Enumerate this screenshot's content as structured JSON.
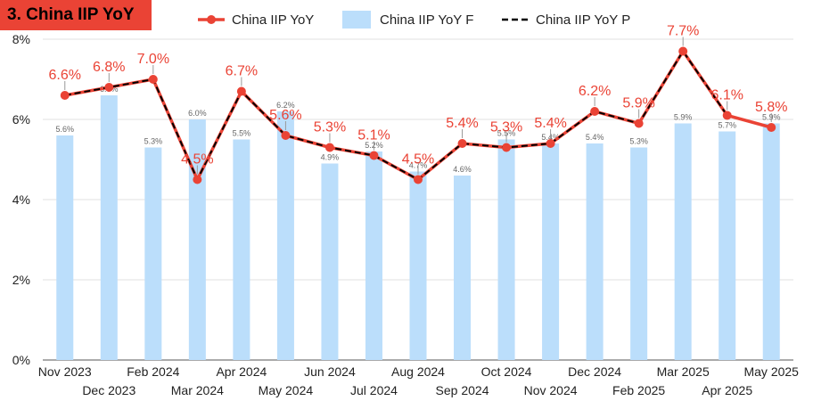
{
  "title": "3. China IIP YoY",
  "chart_data": {
    "type": "bar",
    "title": "3. China IIP YoY",
    "categories": [
      "Nov 2023",
      "Dec 2023",
      "Feb 2024",
      "Mar 2024",
      "Apr 2024",
      "May 2024",
      "Jun 2024",
      "Jul 2024",
      "Aug 2024",
      "Sep 2024",
      "Oct 2024",
      "Nov 2024",
      "Dec 2024",
      "Feb 2025",
      "Mar 2025",
      "Apr 2025",
      "May 2025"
    ],
    "ylim": [
      0,
      8
    ],
    "yticks": [
      "0%",
      "2%",
      "4%",
      "6%",
      "8%"
    ],
    "legend_position": "top",
    "series": [
      {
        "name": "China IIP YoY",
        "kind": "line",
        "color": "#ea4335",
        "values": [
          6.6,
          6.8,
          7.0,
          4.5,
          6.7,
          5.6,
          5.3,
          5.1,
          4.5,
          5.4,
          5.3,
          5.4,
          6.2,
          5.9,
          7.7,
          6.1,
          5.8
        ],
        "labels": [
          "6.6%",
          "6.8%",
          "7.0%",
          "4.5%",
          "6.7%",
          "5.6%",
          "5.3%",
          "5.1%",
          "4.5%",
          "5.4%",
          "5.3%",
          "5.4%",
          "6.2%",
          "5.9%",
          "7.7%",
          "6.1%",
          "5.8%"
        ]
      },
      {
        "name": "China IIP YoY F",
        "kind": "bar",
        "color": "#bbdefb",
        "values": [
          5.6,
          6.6,
          5.3,
          6.0,
          5.5,
          6.2,
          4.9,
          5.2,
          4.7,
          4.6,
          5.5,
          5.4,
          5.4,
          5.3,
          5.9,
          5.7,
          5.9
        ],
        "labels": [
          "5.6%",
          "6.6%",
          "5.3%",
          "6.0%",
          "5.5%",
          "6.2%",
          "4.9%",
          "5.2%",
          "4.7%",
          "4.6%",
          "5.5%",
          "5.4%",
          "5.4%",
          "5.3%",
          "5.9%",
          "5.7%",
          "5.9%"
        ]
      },
      {
        "name": "China IIP YoY P",
        "kind": "dashed-line",
        "color": "#000000",
        "values": [
          6.6,
          6.8,
          7.0,
          4.5,
          6.7,
          5.6,
          5.3,
          5.1,
          4.5,
          5.4,
          5.3,
          5.4,
          6.2,
          5.9,
          7.7,
          6.1,
          null
        ]
      }
    ]
  }
}
